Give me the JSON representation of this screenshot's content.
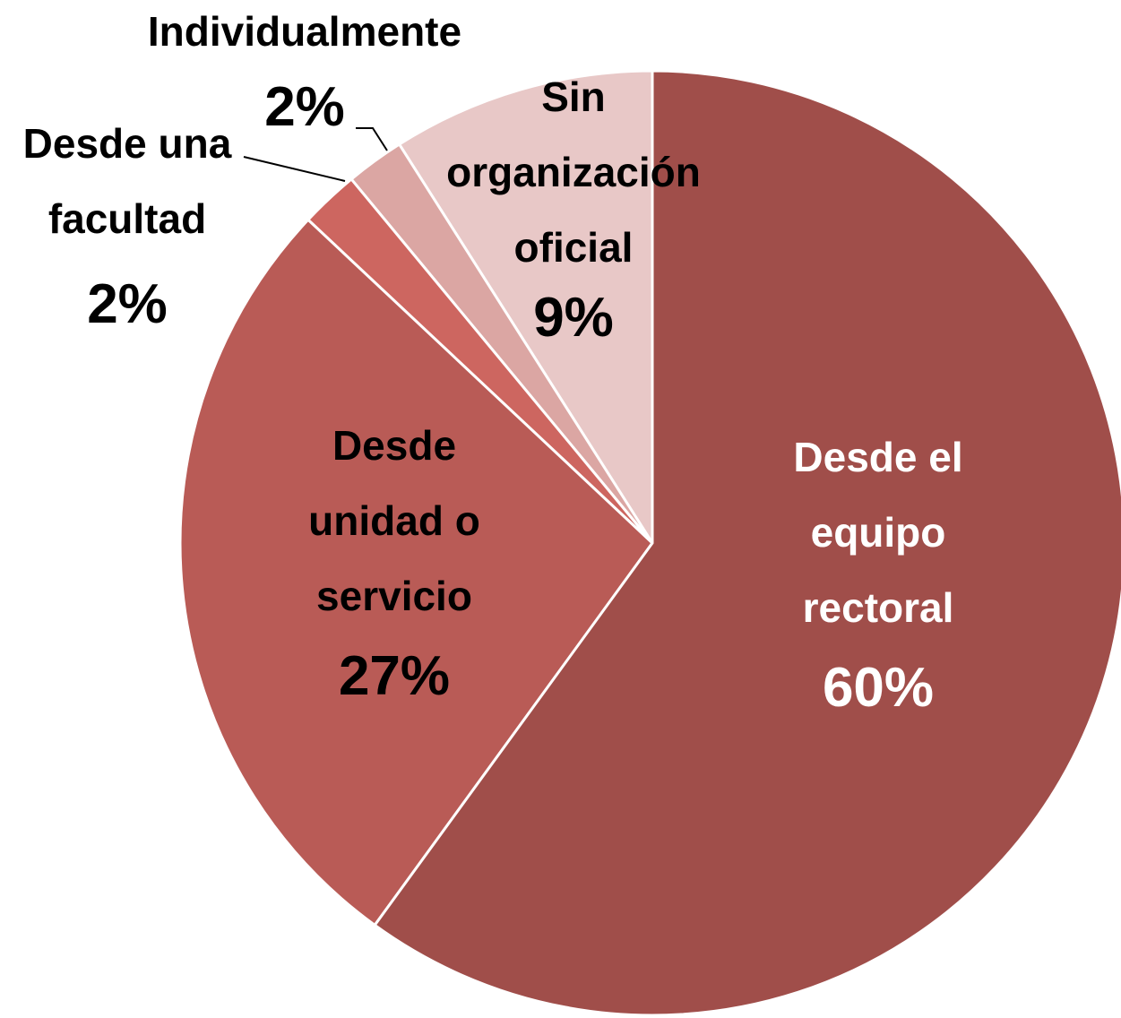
{
  "chart_data": {
    "type": "pie",
    "categories": [
      "Desde el equipo rectoral",
      "Desde unidad o servicio",
      "Desde una facultad",
      "Individualmente",
      "Sin organización oficial"
    ],
    "values": [
      60,
      27,
      2,
      2,
      9
    ],
    "value_labels": [
      "60%",
      "27%",
      "2%",
      "2%",
      "9%"
    ],
    "colors": [
      "#a04e4a",
      "#b95b56",
      "#cd6660",
      "#dba6a3",
      "#e8c8c7"
    ]
  }
}
